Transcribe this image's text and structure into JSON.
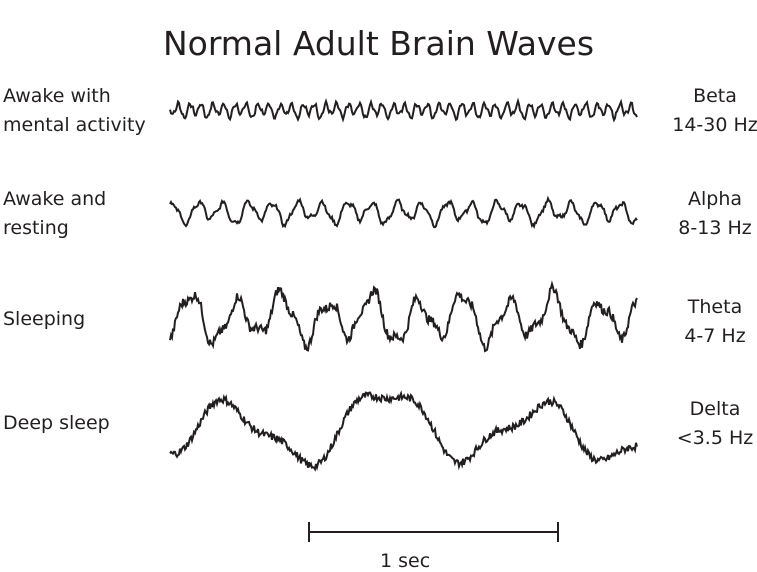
{
  "title": "Normal Adult Brain Waves",
  "rows": [
    {
      "state": "Awake with\nmental activity",
      "band": "Beta",
      "range": "14-30 Hz"
    },
    {
      "state": "Awake and\nresting",
      "band": "Alpha",
      "range": "8-13 Hz"
    },
    {
      "state": "Sleeping",
      "band": "Theta",
      "range": "4-7 Hz"
    },
    {
      "state": "Deep sleep",
      "band": "Delta",
      "range": "<3.5 Hz"
    }
  ],
  "scale_bar": {
    "label": "1 sec"
  },
  "colors": {
    "line": "#231f20"
  }
}
